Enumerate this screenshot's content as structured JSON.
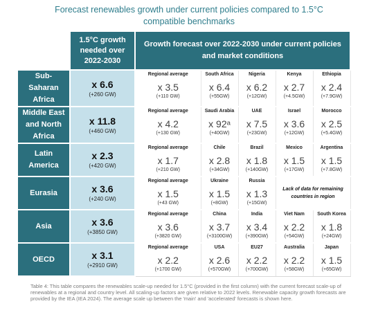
{
  "title_line1": "Forecast renewables growth under current policies compared to 1.5°C",
  "title_line2": "compatible benchmarks",
  "header": {
    "needed_line1": "1.5°C growth",
    "needed_line2": "needed over",
    "needed_line3": "2022-2030",
    "forecast_line1": "Growth forecast over 2022-2030 under current policies",
    "forecast_line2": "and market conditions"
  },
  "rows": [
    {
      "region": "Sub-Saharan Africa",
      "needed": "x 6.6",
      "needed_gw": "(+260 GW)",
      "regional_label": "Regional average",
      "regional": "x 3.5",
      "regional_gw": "(+110 GW)",
      "countries": [
        {
          "name": "South Africa",
          "value": "x 6.4",
          "gw": "(+55GW)"
        },
        {
          "name": "Nigeria",
          "value": "x 6.2",
          "gw": "(+12GW)"
        },
        {
          "name": "Kenya",
          "value": "x 2.7",
          "gw": "(+4.5GW)"
        },
        {
          "name": "Ethiopia",
          "value": "x 2.4",
          "gw": "(+7.9GW)"
        }
      ]
    },
    {
      "region": "Middle East and North Africa",
      "needed": "x 11.8",
      "needed_gw": "(+460 GW)",
      "regional_label": "Regional average",
      "regional": "x 4.2",
      "regional_gw": "(+130 GW)",
      "countries": [
        {
          "name": "Saudi Arabia",
          "value": "x 92ᵃ",
          "gw": "(+40GW)"
        },
        {
          "name": "UAE",
          "value": "x 7.5",
          "gw": "(+23GW)"
        },
        {
          "name": "Israel",
          "value": "x 3.6",
          "gw": "(+12GW)"
        },
        {
          "name": "Morocco",
          "value": "x 2.5",
          "gw": "(+5.4GW)"
        }
      ]
    },
    {
      "region": "Latin America",
      "needed": "x 2.3",
      "needed_gw": "(+420 GW)",
      "regional_label": "Regional average",
      "regional": "x 1.7",
      "regional_gw": "(+210 GW)",
      "countries": [
        {
          "name": "Chile",
          "value": "x 2.8",
          "gw": "(+34GW)"
        },
        {
          "name": "Brazil",
          "value": "x 1.8",
          "gw": "(+140GW)"
        },
        {
          "name": "Mexico",
          "value": "x 1.5",
          "gw": "(+17GW)"
        },
        {
          "name": "Argentina",
          "value": "x 1.5",
          "gw": "(+7.8GW)"
        }
      ]
    },
    {
      "region": "Eurasia",
      "needed": "x 3.6",
      "needed_gw": "(+240 GW)",
      "regional_label": "Regional average",
      "regional": "x 1.5",
      "regional_gw": "(+43 GW)",
      "countries": [
        {
          "name": "Ukraine",
          "value": "x 1.5",
          "gw": "(+8GW)"
        },
        {
          "name": "Russia",
          "value": "x 1.3",
          "gw": "(+15GW)"
        }
      ],
      "no_data": "Lack of data for remaining countries in region"
    },
    {
      "region": "Asia",
      "needed": "x 3.6",
      "needed_gw": "(+3850 GW)",
      "regional_label": "Regional average",
      "regional": "x 3.6",
      "regional_gw": "(+3820 GW)",
      "countries": [
        {
          "name": "China",
          "value": "x 3.7",
          "gw": "(+3100GW)"
        },
        {
          "name": "India",
          "value": "x 3.4",
          "gw": "(+390GW)"
        },
        {
          "name": "Viet Nam",
          "value": "x 2.2",
          "gw": "(+54GW)"
        },
        {
          "name": "South Korea",
          "value": "x 1.8",
          "gw": "(+24GW)"
        }
      ]
    },
    {
      "region": "OECD",
      "needed": "x 3.1",
      "needed_gw": "(+2910 GW)",
      "regional_label": "Regional average",
      "regional": "x 2.2",
      "regional_gw": "(+1700 GW)",
      "countries": [
        {
          "name": "USA",
          "value": "x 2.6",
          "gw": "(+570GW)"
        },
        {
          "name": "EU27",
          "value": "x 2.2",
          "gw": "(+700GW)"
        },
        {
          "name": "Australia",
          "value": "x 2.2",
          "gw": "(+58GW)"
        },
        {
          "name": "Japan",
          "value": "x 1.5",
          "gw": "(+65GW)"
        }
      ]
    }
  ],
  "caption": "Table 4: This table compares the renewables scale-up needed for 1.5°C (provided in the first column) with the current forecast scale-up of renewables at a regional and country level. All scaling-up factors are given relative to 2022 levels. Renewable capacity growth forecasts are provided by the IEA (IEA 2024). The average scale up between the 'main' and 'accelerated' forecasts is shown here."
}
